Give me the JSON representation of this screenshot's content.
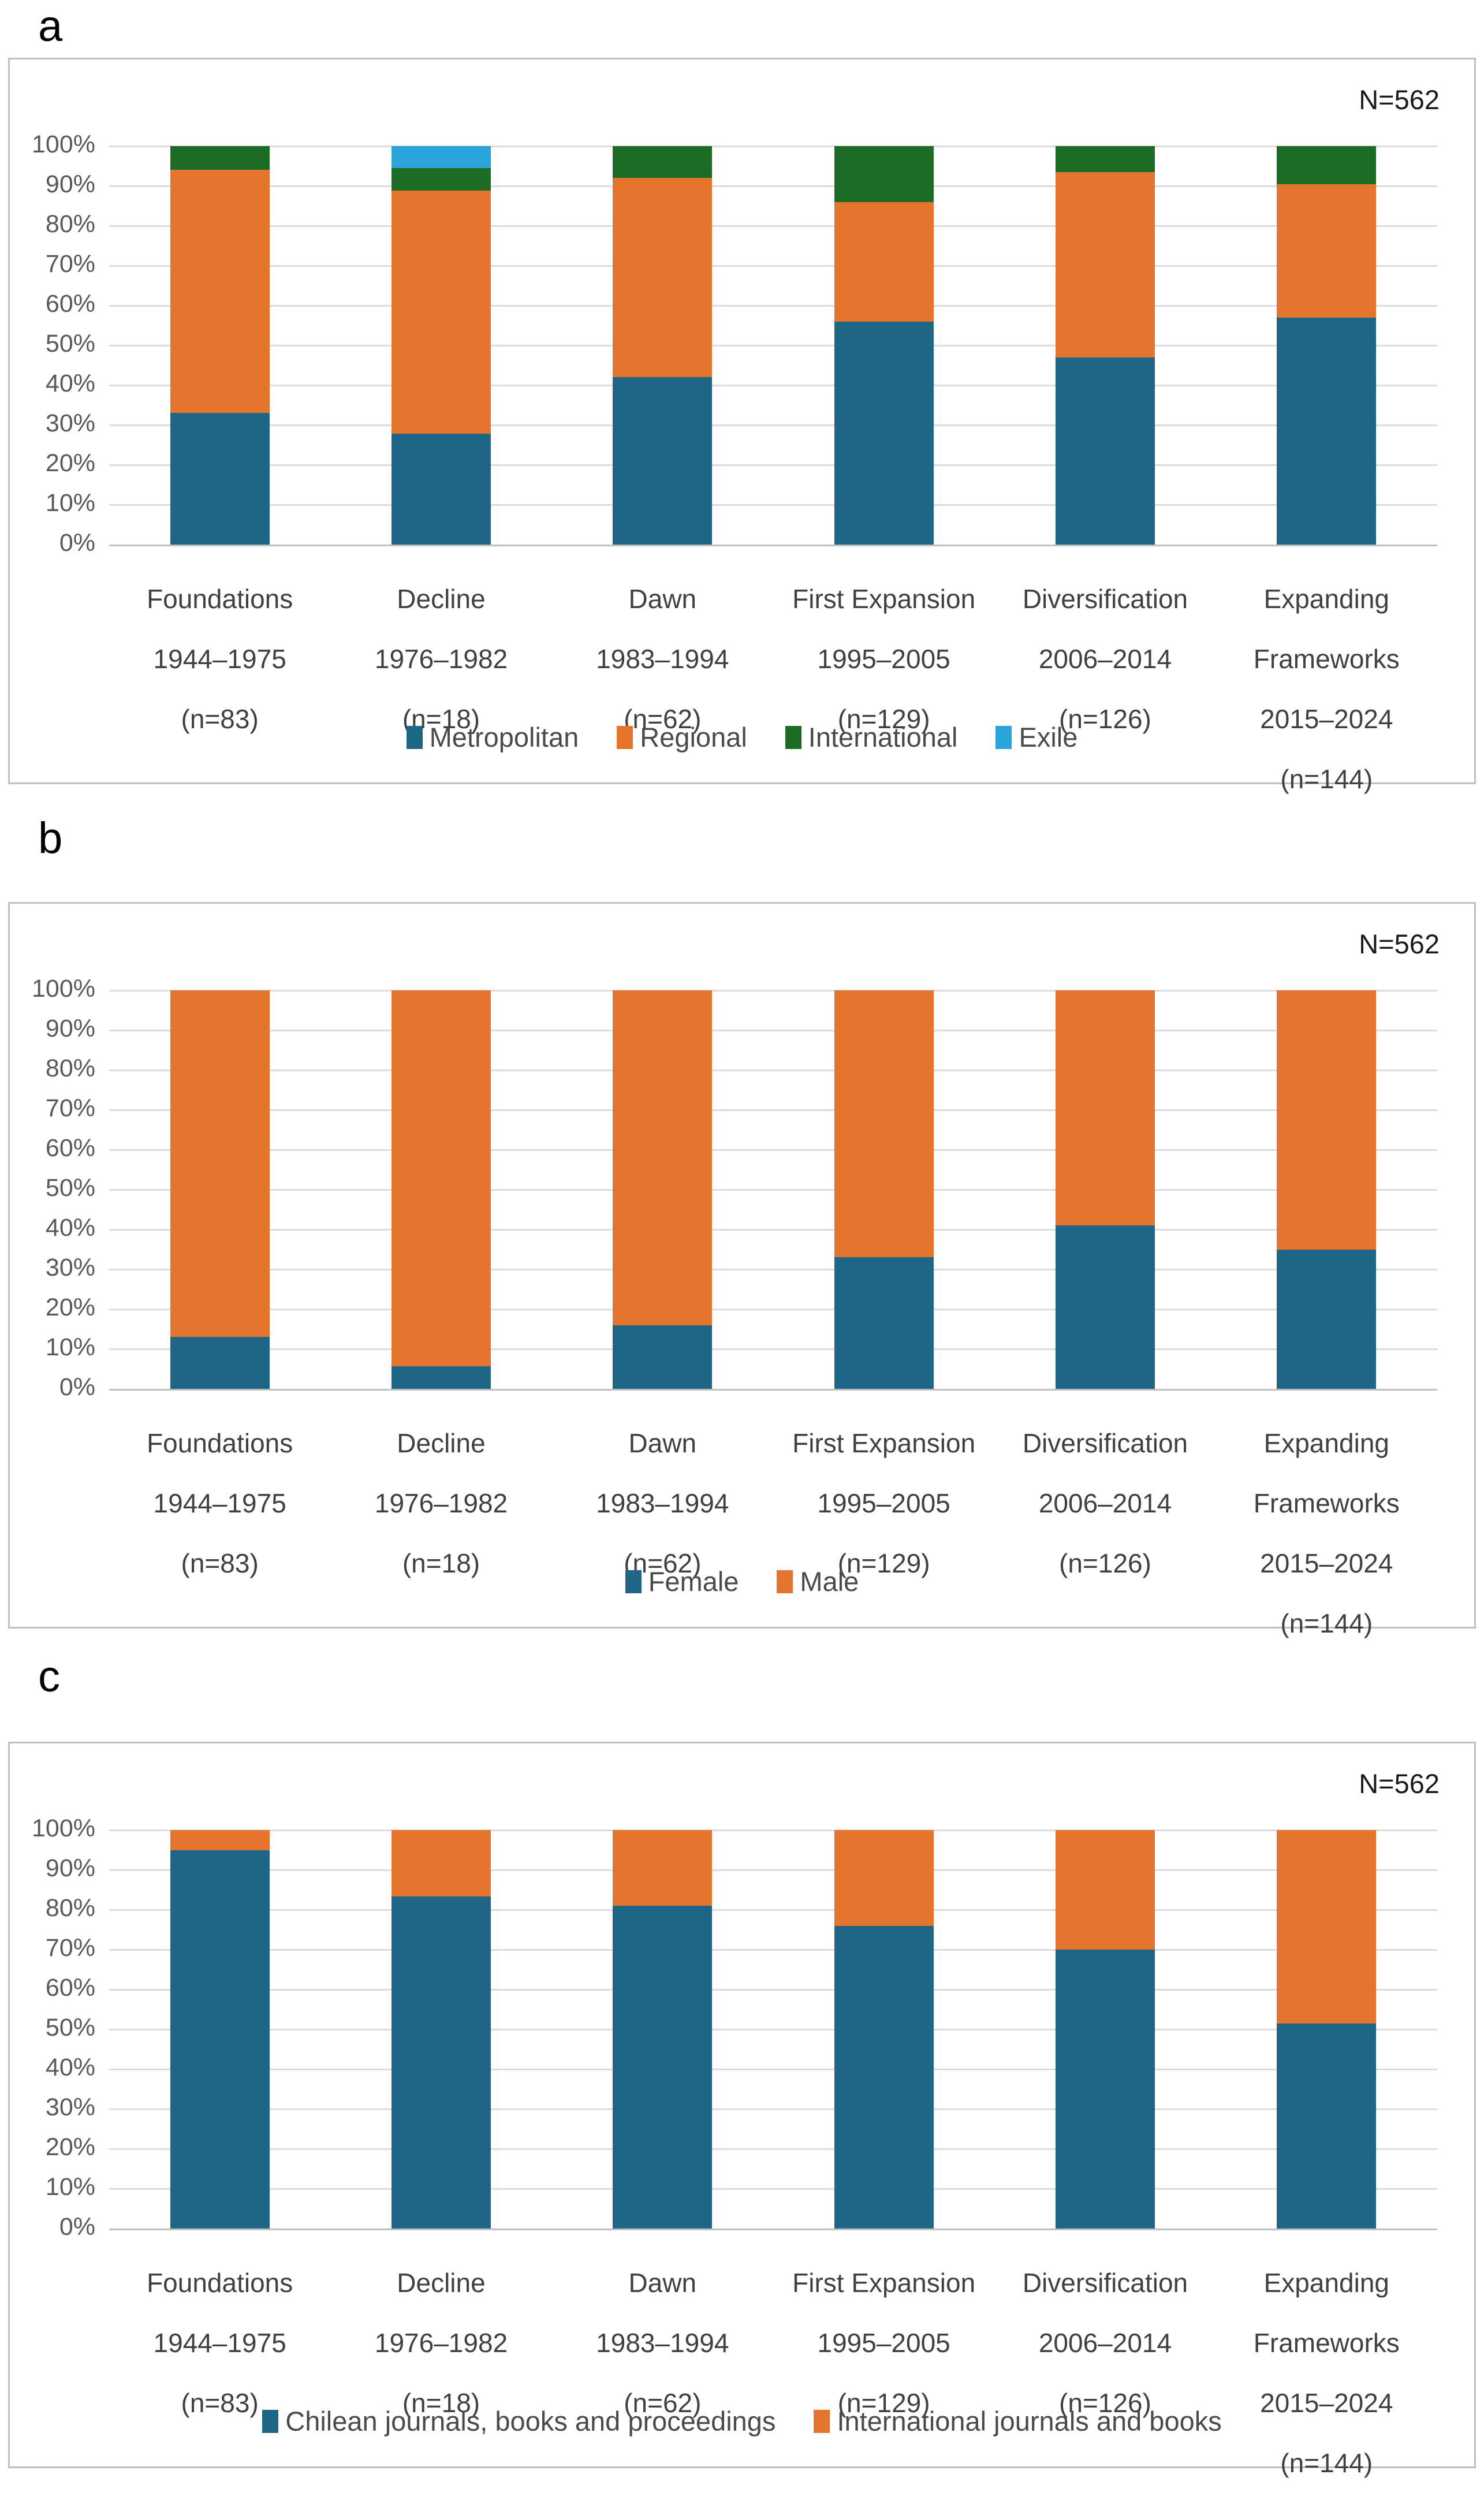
{
  "figure": {
    "letters": [
      "a",
      "b",
      "c"
    ],
    "sample_size_label": "N=562",
    "y_ticks": [
      "0%",
      "10%",
      "20%",
      "30%",
      "40%",
      "50%",
      "60%",
      "70%",
      "80%",
      "90%",
      "100%"
    ]
  },
  "colors": {
    "blue": "#1F6585",
    "orange": "#E5742F",
    "green": "#1D6C26",
    "light_blue": "#2AA3DB",
    "gridline": "#DCDCDC",
    "axis_line": "#C0C0C0",
    "panel_border": "#BFBFBF",
    "tick_text": "#595959",
    "label_text": "#404040"
  },
  "chart_data": [
    {
      "type": "bar",
      "stacked": true,
      "units": "percent",
      "panel_letter": "a",
      "annotation": "N=562",
      "ylim": [
        0,
        100
      ],
      "y_tick_step": 10,
      "grid": true,
      "legend_position": "bottom",
      "categories": [
        [
          "Foundations",
          "1944–1975",
          "(n=83)"
        ],
        [
          "Decline",
          "1976–1982",
          "(n=18)"
        ],
        [
          "Dawn",
          "1983–1994",
          "(n=62)"
        ],
        [
          "First Expansion",
          "1995–2005",
          "(n=129)"
        ],
        [
          "Diversification",
          "2006–2014",
          "(n=126)"
        ],
        [
          "Expanding",
          "Frameworks",
          "2015–2024",
          "(n=144)"
        ]
      ],
      "series": [
        {
          "name": "Metropolitan",
          "color": "#1F6585",
          "values": [
            33.0,
            27.8,
            42.0,
            56.0,
            47.0,
            57.0
          ]
        },
        {
          "name": "Regional",
          "color": "#E5742F",
          "values": [
            61.0,
            61.1,
            50.0,
            30.0,
            46.5,
            33.5
          ]
        },
        {
          "name": "International",
          "color": "#1D6C26",
          "values": [
            6.0,
            5.6,
            8.0,
            14.0,
            6.5,
            9.5
          ]
        },
        {
          "name": "Exile",
          "color": "#2AA3DB",
          "values": [
            0,
            5.5,
            0,
            0,
            0,
            0
          ]
        }
      ]
    },
    {
      "type": "bar",
      "stacked": true,
      "units": "percent",
      "panel_letter": "b",
      "annotation": "N=562",
      "ylim": [
        0,
        100
      ],
      "y_tick_step": 10,
      "grid": true,
      "legend_position": "bottom",
      "categories": [
        [
          "Foundations",
          "1944–1975",
          "(n=83)"
        ],
        [
          "Decline",
          "1976–1982",
          "(n=18)"
        ],
        [
          "Dawn",
          "1983–1994",
          "(n=62)"
        ],
        [
          "First Expansion",
          "1995–2005",
          "(n=129)"
        ],
        [
          "Diversification",
          "2006–2014",
          "(n=126)"
        ],
        [
          "Expanding",
          "Frameworks",
          "2015–2024",
          "(n=144)"
        ]
      ],
      "series": [
        {
          "name": "Female",
          "color": "#1F6585",
          "values": [
            13.0,
            5.6,
            16.0,
            33.0,
            41.0,
            35.0
          ]
        },
        {
          "name": "Male",
          "color": "#E5742F",
          "values": [
            87.0,
            94.4,
            84.0,
            67.0,
            59.0,
            65.0
          ]
        }
      ]
    },
    {
      "type": "bar",
      "stacked": true,
      "units": "percent",
      "panel_letter": "c",
      "annotation": "N=562",
      "ylim": [
        0,
        100
      ],
      "y_tick_step": 10,
      "grid": true,
      "legend_position": "bottom",
      "categories": [
        [
          "Foundations",
          "1944–1975",
          "(n=83)"
        ],
        [
          "Decline",
          "1976–1982",
          "(n=18)"
        ],
        [
          "Dawn",
          "1983–1994",
          "(n=62)"
        ],
        [
          "First Expansion",
          "1995–2005",
          "(n=129)"
        ],
        [
          "Diversification",
          "2006–2014",
          "(n=126)"
        ],
        [
          "Expanding",
          "Frameworks",
          "2015–2024",
          "(n=144)"
        ]
      ],
      "series": [
        {
          "name": "Chilean journals, books and proceedings",
          "color": "#1F6585",
          "values": [
            95.0,
            83.3,
            81.0,
            76.0,
            70.0,
            51.4
          ]
        },
        {
          "name": "International journals and books",
          "color": "#E5742F",
          "values": [
            5.0,
            16.7,
            19.0,
            24.0,
            30.0,
            48.6
          ]
        }
      ]
    }
  ]
}
